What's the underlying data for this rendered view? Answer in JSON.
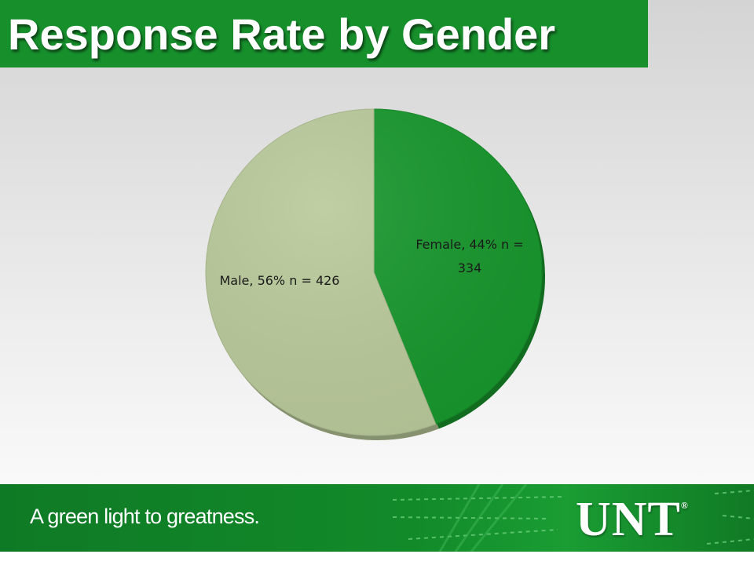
{
  "title": "Response Rate by Gender",
  "chart_data": {
    "type": "pie",
    "title": "",
    "slices": [
      {
        "label": "Female, 44% n =",
        "label_line2": "334",
        "percent": 44,
        "n": 334,
        "color": "#17962c"
      },
      {
        "label": "Male, 56% n = 426",
        "label_line2": "",
        "percent": 56,
        "n": 426,
        "color": "#b9c99a"
      }
    ],
    "start_angle": "12 o'clock, clockwise",
    "legend": "none"
  },
  "footer": {
    "tagline": "A green light to greatness.",
    "logo": "UNT",
    "logo_mark": "®"
  },
  "colors": {
    "brand_green": "#17902c",
    "female": "#17962c",
    "male": "#b9c99a"
  }
}
